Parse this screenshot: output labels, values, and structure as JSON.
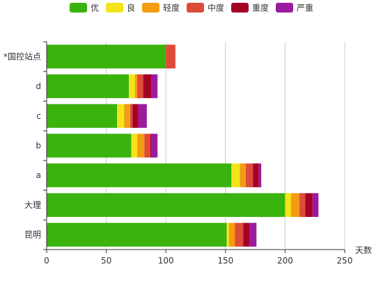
{
  "chart_data": {
    "type": "bar",
    "orientation": "horizontal",
    "stacked": true,
    "categories": [
      "昆明",
      "大理",
      "a",
      "b",
      "c",
      "d",
      "*国控站点"
    ],
    "series": [
      {
        "name": "优",
        "color": "#3bb30f",
        "values": [
          151,
          200,
          155,
          71,
          59,
          69,
          100
        ]
      },
      {
        "name": "良",
        "color": "#f5e31a",
        "values": [
          2,
          5,
          7,
          5,
          6,
          5,
          0
        ]
      },
      {
        "name": "轻度",
        "color": "#f39c12",
        "values": [
          5,
          7,
          5,
          6,
          5,
          2,
          0
        ]
      },
      {
        "name": "中度",
        "color": "#dd4b39",
        "values": [
          7,
          5,
          6,
          5,
          2,
          5,
          8
        ]
      },
      {
        "name": "重度",
        "color": "#a50026",
        "values": [
          5,
          6,
          5,
          1,
          5,
          7,
          0
        ]
      },
      {
        "name": "严重",
        "color": "#9b1b9e",
        "values": [
          6,
          5,
          2,
          5,
          7,
          5,
          0
        ]
      }
    ],
    "xlabel": "天数",
    "xlim": [
      0,
      250
    ],
    "xticks": [
      0,
      50,
      100,
      150,
      200,
      250
    ],
    "grid": true,
    "legend_position": "top"
  }
}
